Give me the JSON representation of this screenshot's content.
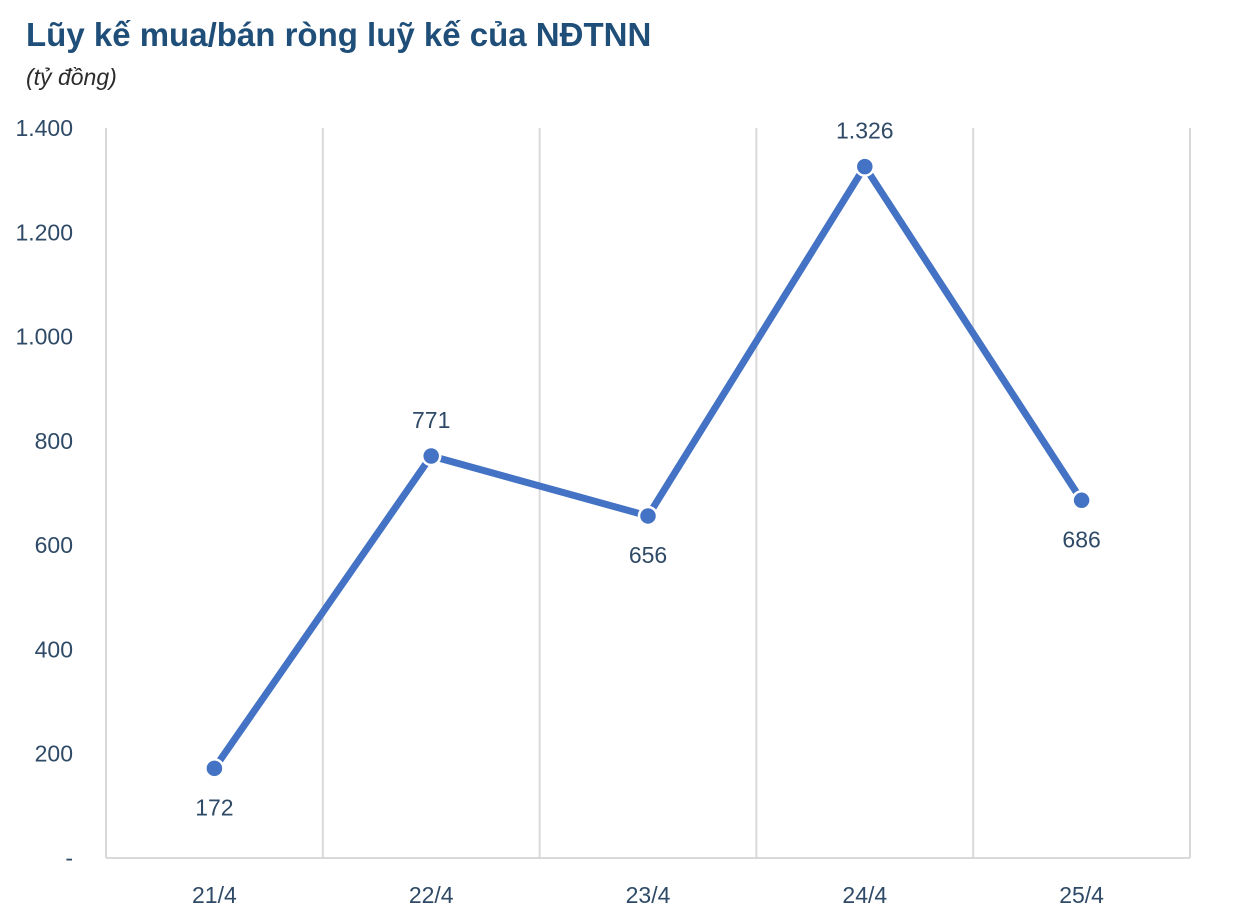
{
  "chart_data": {
    "type": "line",
    "title": "Lũy kế mua/bán ròng luỹ kế của NĐTNN",
    "subtitle": "(tỷ đồng)",
    "categories": [
      "21/4",
      "22/4",
      "23/4",
      "24/4",
      "25/4"
    ],
    "series": [
      {
        "values": [
          172,
          771,
          656,
          1326,
          686
        ],
        "labels": [
          "172",
          "771",
          "656",
          "1.326",
          "686"
        ],
        "color": "#4472c4"
      }
    ],
    "yticks": [
      {
        "value": 0,
        "label": "-"
      },
      {
        "value": 200,
        "label": "200"
      },
      {
        "value": 400,
        "label": "400"
      },
      {
        "value": 600,
        "label": "600"
      },
      {
        "value": 800,
        "label": "800"
      },
      {
        "value": 1000,
        "label": "1.000"
      },
      {
        "value": 1200,
        "label": "1.200"
      },
      {
        "value": 1400,
        "label": "1.400"
      }
    ],
    "ylim": [
      0,
      1400
    ],
    "grid": "vertical",
    "legend": "none",
    "colors": {
      "title": "#1f4e79",
      "line": "#4472c4",
      "grid": "#d9d9d9",
      "axis_text": "#2f4a66"
    }
  }
}
